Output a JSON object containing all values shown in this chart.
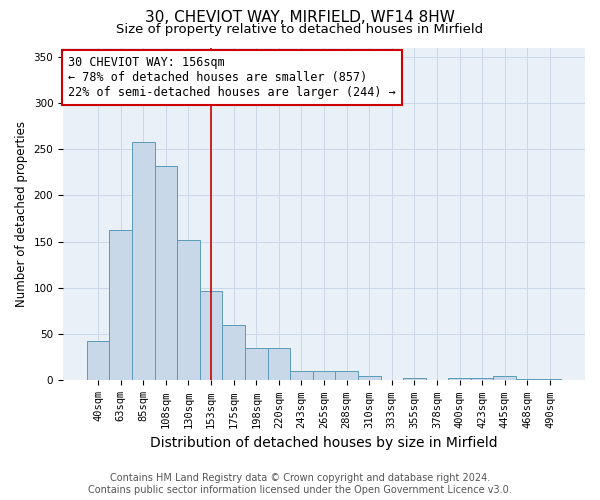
{
  "title": "30, CHEVIOT WAY, MIRFIELD, WF14 8HW",
  "subtitle": "Size of property relative to detached houses in Mirfield",
  "xlabel": "Distribution of detached houses by size in Mirfield",
  "ylabel": "Number of detached properties",
  "footer_line1": "Contains HM Land Registry data © Crown copyright and database right 2024.",
  "footer_line2": "Contains public sector information licensed under the Open Government Licence v3.0.",
  "annotation_line1": "30 CHEVIOT WAY: 156sqm",
  "annotation_line2": "← 78% of detached houses are smaller (857)",
  "annotation_line3": "22% of semi-detached houses are larger (244) →",
  "bar_labels": [
    "40sqm",
    "63sqm",
    "85sqm",
    "108sqm",
    "130sqm",
    "153sqm",
    "175sqm",
    "198sqm",
    "220sqm",
    "243sqm",
    "265sqm",
    "288sqm",
    "310sqm",
    "333sqm",
    "355sqm",
    "378sqm",
    "400sqm",
    "423sqm",
    "445sqm",
    "468sqm",
    "490sqm"
  ],
  "bar_values": [
    43,
    163,
    258,
    232,
    152,
    97,
    60,
    35,
    35,
    10,
    10,
    10,
    5,
    0,
    3,
    0,
    3,
    3,
    5,
    2,
    2
  ],
  "property_bar_index": 5,
  "bar_color": "#c8d8e8",
  "bar_edge_color": "#5a9aba",
  "vline_color": "#cc0000",
  "annotation_box_edge_color": "#cc0000",
  "background_color": "#ffffff",
  "axes_bg_color": "#eaf0f8",
  "grid_color": "#ccd8e8",
  "title_fontsize": 11,
  "subtitle_fontsize": 9.5,
  "xlabel_fontsize": 10,
  "ylabel_fontsize": 8.5,
  "tick_fontsize": 7.5,
  "annotation_fontsize": 8.5,
  "footer_fontsize": 7,
  "ylim": [
    0,
    360
  ],
  "yticks": [
    0,
    50,
    100,
    150,
    200,
    250,
    300,
    350
  ]
}
